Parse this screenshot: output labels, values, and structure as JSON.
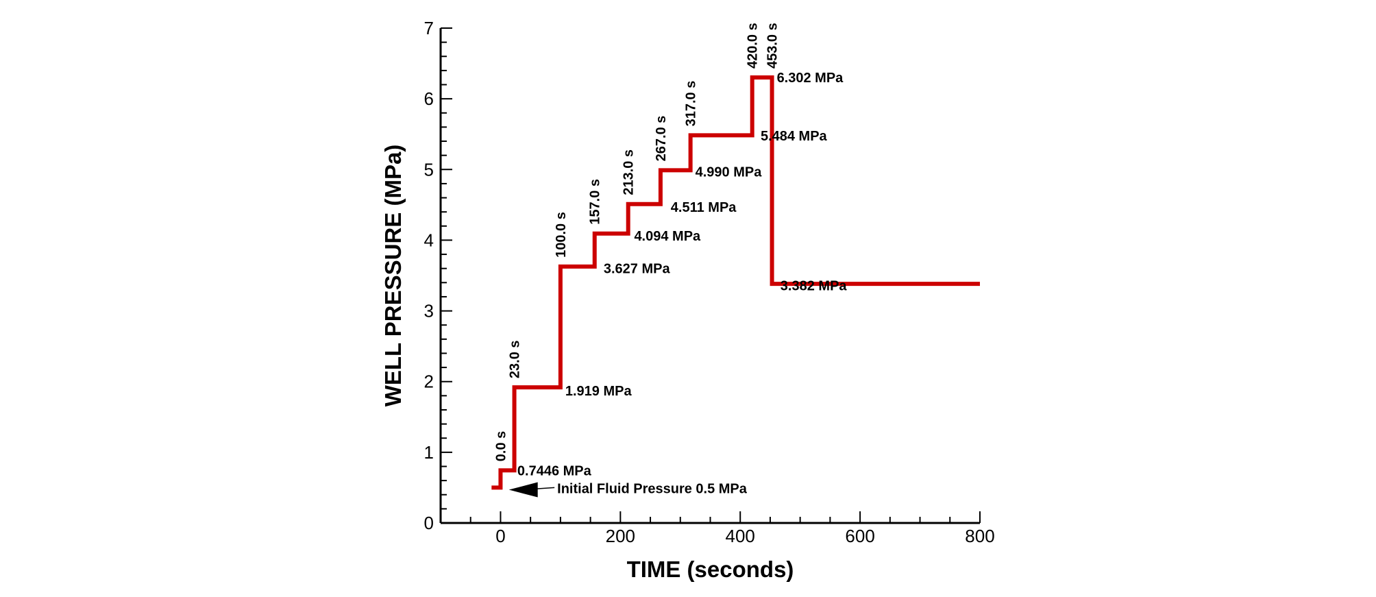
{
  "chart_data": {
    "type": "line",
    "title": "",
    "xlabel": "TIME (seconds)",
    "ylabel": "WELL PRESSURE (MPa)",
    "xlim": [
      -100,
      800
    ],
    "ylim": [
      0,
      7
    ],
    "x_ticks": [
      0,
      200,
      400,
      600,
      800
    ],
    "y_ticks": [
      0,
      1,
      2,
      3,
      4,
      5,
      6,
      7
    ],
    "x_tick_labels": [
      "0",
      "200",
      "400",
      "600",
      "800"
    ],
    "y_tick_labels": [
      "0",
      "1",
      "2",
      "3",
      "4",
      "5",
      "6",
      "7"
    ],
    "grid": false,
    "line_color": "#cc0000",
    "series": [
      {
        "x": [
          -15,
          0,
          0,
          23,
          23,
          100,
          100,
          157,
          157,
          213,
          213,
          267,
          267,
          317,
          317,
          420,
          420,
          453,
          453,
          800
        ],
        "y": [
          0.5,
          0.5,
          0.7446,
          0.7446,
          1.919,
          1.919,
          3.627,
          3.627,
          4.094,
          4.094,
          4.511,
          4.511,
          4.99,
          4.99,
          5.484,
          5.484,
          6.302,
          6.302,
          3.382,
          3.382
        ]
      }
    ],
    "time_labels": [
      {
        "text": "0.0 s",
        "x": 0
      },
      {
        "text": "23.0 s",
        "x": 23
      },
      {
        "text": "100.0 s",
        "x": 100
      },
      {
        "text": "157.0 s",
        "x": 157
      },
      {
        "text": "213.0 s",
        "x": 213
      },
      {
        "text": "267.0 s",
        "x": 267
      },
      {
        "text": "317.0 s",
        "x": 317
      },
      {
        "text": "420.0 s",
        "x": 420
      },
      {
        "text": "453.0 s",
        "x": 453
      }
    ],
    "pressure_labels": [
      {
        "text": "0.7446 MPa",
        "x": 28,
        "y": 0.74
      },
      {
        "text": "1.919 MPa",
        "x": 108,
        "y": 1.87
      },
      {
        "text": "3.627 MPa",
        "x": 172,
        "y": 3.6
      },
      {
        "text": "4.094 MPa",
        "x": 223,
        "y": 4.06
      },
      {
        "text": "4.511 MPa",
        "x": 284,
        "y": 4.47
      },
      {
        "text": "4.990 MPa",
        "x": 325,
        "y": 4.97
      },
      {
        "text": "5.484 MPa",
        "x": 434,
        "y": 5.48
      },
      {
        "text": "6.302 MPa",
        "x": 461,
        "y": 6.3
      },
      {
        "text": "3.382 MPa",
        "x": 467,
        "y": 3.36
      }
    ],
    "annotation": {
      "text": "Initial Fluid Pressure 0.5 MPa",
      "x": 90,
      "y": 0.5,
      "arrow_from": [
        90,
        0.5
      ],
      "arrow_to": [
        14,
        0.46
      ]
    }
  }
}
